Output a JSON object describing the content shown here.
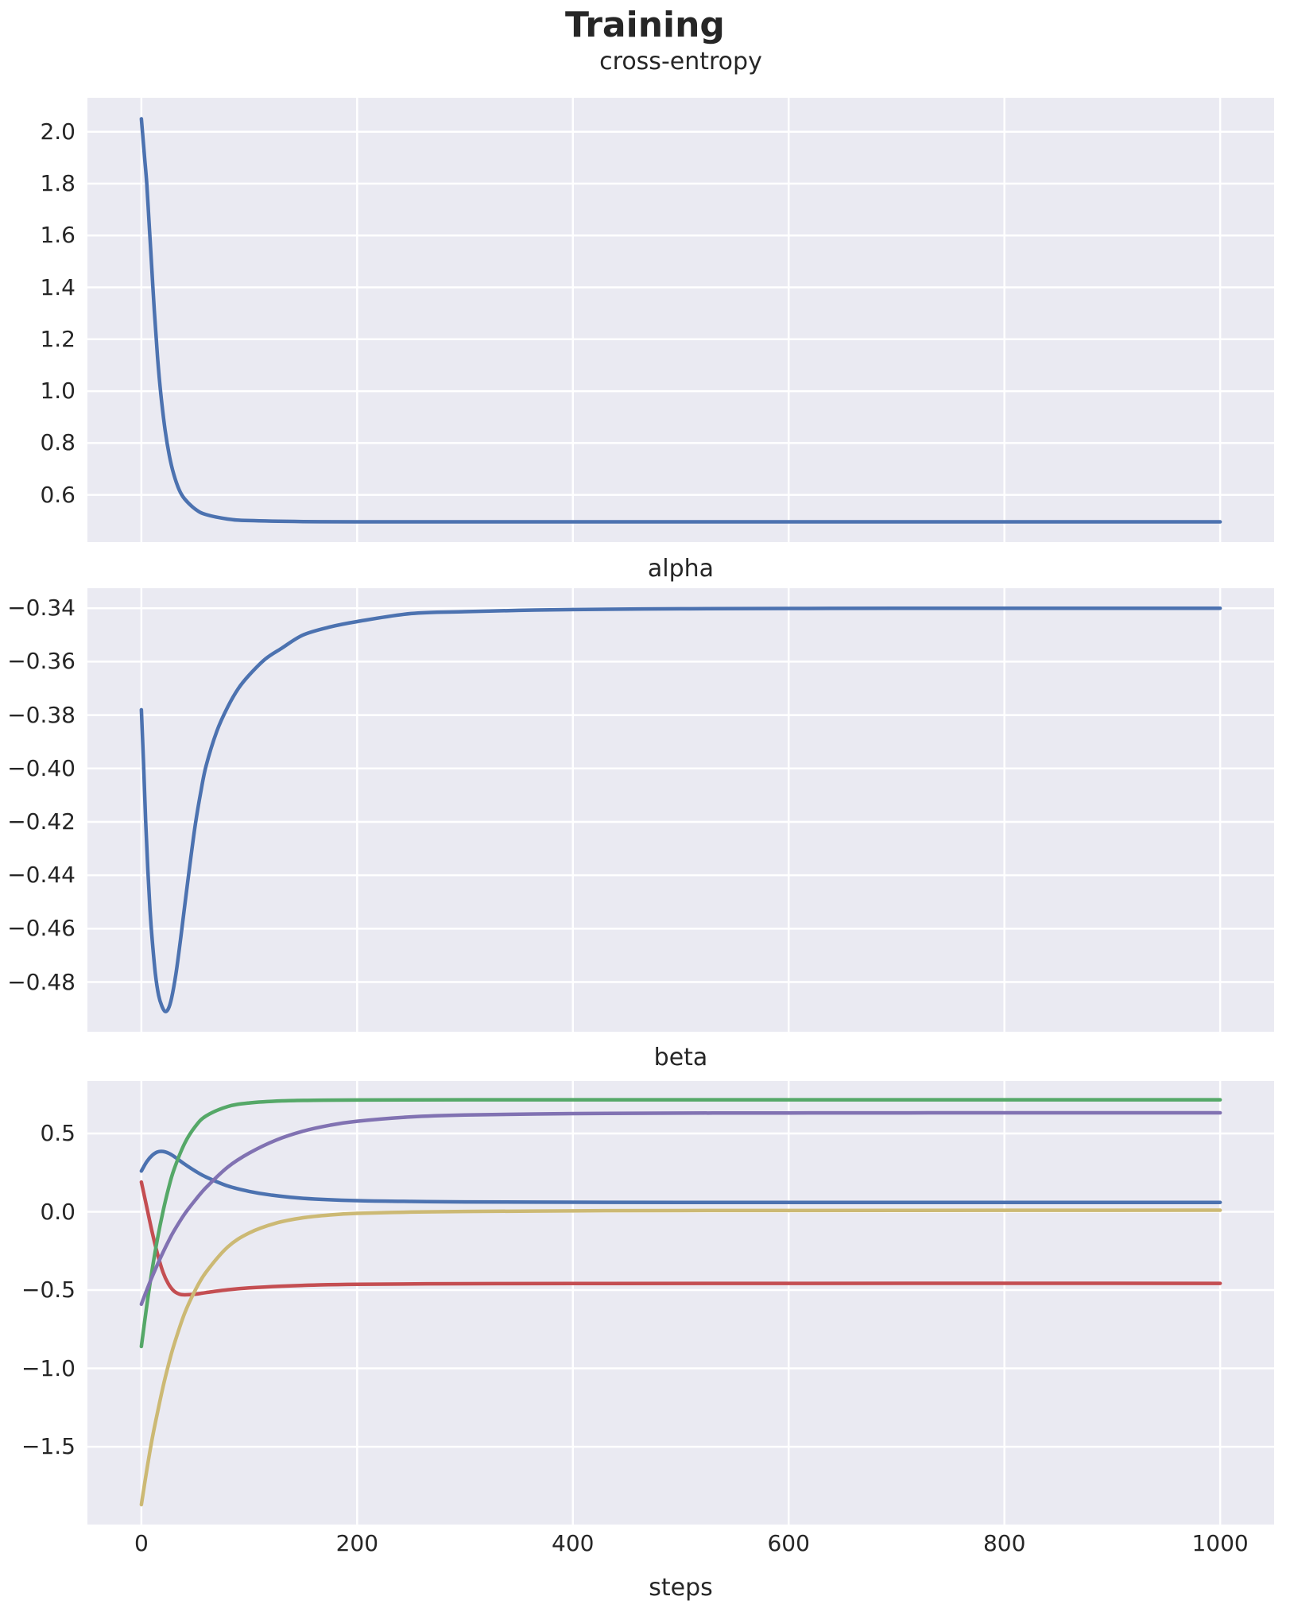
{
  "figure": {
    "title": "Training",
    "background_color": "#ffffff",
    "axes_background_color": "#eaeaf2",
    "grid_color": "#ffffff",
    "text_color": "#262626"
  },
  "x_axis": {
    "label": "steps",
    "range": [
      -50,
      1050
    ],
    "ticks": [
      {
        "value": 0,
        "label": "0"
      },
      {
        "value": 200,
        "label": "200"
      },
      {
        "value": 400,
        "label": "400"
      },
      {
        "value": 600,
        "label": "600"
      },
      {
        "value": 800,
        "label": "800"
      },
      {
        "value": 1000,
        "label": "1000"
      }
    ]
  },
  "chart_data": [
    {
      "type": "line",
      "title": "cross-entropy",
      "xlabel": "steps",
      "grid": true,
      "legend": false,
      "xlim": [
        -50,
        1050
      ],
      "ylim": [
        0.418,
        2.131
      ],
      "yticks": [
        {
          "value": 2.0,
          "label": "2.0"
        },
        {
          "value": 1.8,
          "label": "1.8"
        },
        {
          "value": 1.6,
          "label": "1.6"
        },
        {
          "value": 1.4,
          "label": "1.4"
        },
        {
          "value": 1.2,
          "label": "1.2"
        },
        {
          "value": 1.0,
          "label": "1.0"
        },
        {
          "value": 0.8,
          "label": "0.8"
        },
        {
          "value": 0.6,
          "label": "0.6"
        }
      ],
      "series": [
        {
          "name": "cross-entropy-loss",
          "color": "#4c72b0",
          "x": [
            0,
            3,
            5,
            7,
            9,
            12,
            15,
            18,
            22,
            26,
            30,
            35,
            40,
            50,
            60,
            80,
            100,
            150,
            200,
            300,
            400,
            500,
            600,
            700,
            800,
            900,
            1000
          ],
          "y": [
            2.05,
            1.9,
            1.8,
            1.66,
            1.52,
            1.31,
            1.13,
            0.99,
            0.85,
            0.75,
            0.68,
            0.62,
            0.585,
            0.545,
            0.524,
            0.507,
            0.501,
            0.497,
            0.496,
            0.496,
            0.496,
            0.496,
            0.496,
            0.496,
            0.496,
            0.496,
            0.496
          ]
        }
      ]
    },
    {
      "type": "line",
      "title": "alpha",
      "xlabel": "steps",
      "grid": true,
      "legend": false,
      "xlim": [
        -50,
        1050
      ],
      "ylim": [
        -0.4986,
        -0.3325
      ],
      "yticks": [
        {
          "value": -0.34,
          "label": "−0.34"
        },
        {
          "value": -0.36,
          "label": "−0.36"
        },
        {
          "value": -0.38,
          "label": "−0.38"
        },
        {
          "value": -0.4,
          "label": "−0.40"
        },
        {
          "value": -0.42,
          "label": "−0.42"
        },
        {
          "value": -0.44,
          "label": "−0.44"
        },
        {
          "value": -0.46,
          "label": "−0.46"
        },
        {
          "value": -0.48,
          "label": "−0.48"
        }
      ],
      "series": [
        {
          "name": "alpha",
          "color": "#4c72b0",
          "x": [
            0,
            2,
            4,
            6,
            8,
            10,
            13,
            16,
            19,
            22,
            25,
            28,
            32,
            36,
            40,
            45,
            50,
            55,
            60,
            70,
            80,
            90,
            100,
            115,
            130,
            150,
            175,
            200,
            250,
            300,
            350,
            400,
            500,
            600,
            700,
            800,
            900,
            1000
          ],
          "y": [
            -0.378,
            -0.398,
            -0.42,
            -0.438,
            -0.453,
            -0.464,
            -0.477,
            -0.485,
            -0.489,
            -0.491,
            -0.49,
            -0.486,
            -0.477,
            -0.465,
            -0.452,
            -0.436,
            -0.421,
            -0.409,
            -0.399,
            -0.386,
            -0.377,
            -0.37,
            -0.365,
            -0.359,
            -0.355,
            -0.35,
            -0.347,
            -0.345,
            -0.342,
            -0.3413,
            -0.3408,
            -0.3405,
            -0.3402,
            -0.3401,
            -0.34,
            -0.34,
            -0.34,
            -0.34
          ]
        }
      ]
    },
    {
      "type": "line",
      "title": "beta",
      "xlabel": "steps",
      "grid": true,
      "legend": false,
      "xlim": [
        -50,
        1050
      ],
      "ylim": [
        -1.997,
        0.835
      ],
      "yticks": [
        {
          "value": 0.5,
          "label": "0.5"
        },
        {
          "value": 0.0,
          "label": "0.0"
        },
        {
          "value": -0.5,
          "label": "−0.5"
        },
        {
          "value": -1.0,
          "label": "−1.0"
        },
        {
          "value": -1.5,
          "label": "−1.5"
        }
      ],
      "series": [
        {
          "name": "beta-blue",
          "color": "#4c72b0",
          "x": [
            0,
            5,
            10,
            15,
            20,
            25,
            30,
            40,
            50,
            60,
            80,
            100,
            120,
            150,
            200,
            250,
            300,
            400,
            500,
            700,
            1000
          ],
          "y": [
            0.26,
            0.32,
            0.36,
            0.382,
            0.385,
            0.375,
            0.355,
            0.305,
            0.26,
            0.222,
            0.165,
            0.13,
            0.107,
            0.086,
            0.071,
            0.066,
            0.063,
            0.061,
            0.06,
            0.06,
            0.06
          ]
        },
        {
          "name": "beta-red",
          "color": "#c44e52",
          "x": [
            0,
            5,
            10,
            15,
            20,
            25,
            30,
            35,
            40,
            50,
            60,
            80,
            100,
            130,
            160,
            200,
            300,
            400,
            600,
            1000
          ],
          "y": [
            0.19,
            0.03,
            -0.13,
            -0.27,
            -0.385,
            -0.46,
            -0.505,
            -0.525,
            -0.53,
            -0.526,
            -0.516,
            -0.498,
            -0.486,
            -0.475,
            -0.468,
            -0.463,
            -0.459,
            -0.458,
            -0.457,
            -0.457
          ]
        },
        {
          "name": "beta-green",
          "color": "#55a868",
          "x": [
            0,
            5,
            10,
            15,
            20,
            25,
            30,
            40,
            50,
            60,
            80,
            100,
            130,
            160,
            200,
            300,
            500,
            1000
          ],
          "y": [
            -0.86,
            -0.6,
            -0.37,
            -0.17,
            0.0,
            0.145,
            0.265,
            0.435,
            0.545,
            0.612,
            0.672,
            0.695,
            0.708,
            0.712,
            0.714,
            0.715,
            0.715,
            0.715
          ]
        },
        {
          "name": "beta-purple",
          "color": "#8172b2",
          "x": [
            0,
            5,
            10,
            15,
            20,
            25,
            30,
            40,
            50,
            60,
            80,
            100,
            125,
            150,
            175,
            200,
            250,
            300,
            400,
            500,
            600,
            800,
            1000
          ],
          "y": [
            -0.59,
            -0.5,
            -0.415,
            -0.335,
            -0.26,
            -0.19,
            -0.125,
            -0.015,
            0.075,
            0.155,
            0.285,
            0.375,
            0.458,
            0.515,
            0.553,
            0.578,
            0.606,
            0.618,
            0.627,
            0.63,
            0.631,
            0.632,
            0.632
          ]
        },
        {
          "name": "beta-tan",
          "color": "#ccb974",
          "x": [
            0,
            5,
            10,
            15,
            20,
            25,
            30,
            40,
            50,
            60,
            80,
            100,
            125,
            150,
            175,
            200,
            250,
            300,
            400,
            500,
            700,
            1000
          ],
          "y": [
            -1.87,
            -1.65,
            -1.45,
            -1.28,
            -1.12,
            -0.98,
            -0.855,
            -0.65,
            -0.5,
            -0.385,
            -0.225,
            -0.135,
            -0.072,
            -0.038,
            -0.02,
            -0.01,
            -0.002,
            0.002,
            0.006,
            0.008,
            0.009,
            0.01
          ]
        }
      ]
    }
  ]
}
